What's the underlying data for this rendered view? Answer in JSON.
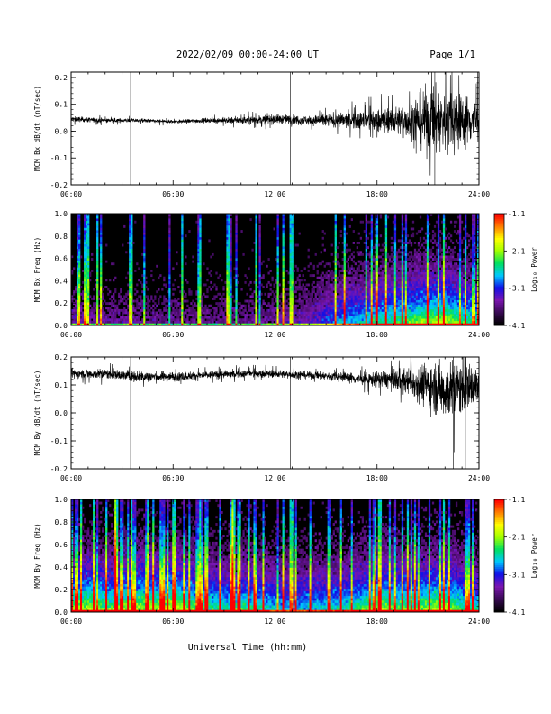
{
  "header": {
    "title": "2022/02/09  00:00-24:00 UT",
    "page": "Page 1/1"
  },
  "footer": {
    "x_title": "Universal Time (hh:mm)"
  },
  "colors": {
    "trace": "#000000",
    "spectrogram_background": "#000000",
    "colormap": [
      "#000000",
      "#3a0a55",
      "#7b16b0",
      "#1010e8",
      "#00c8ff",
      "#00e060",
      "#a0ff00",
      "#ffff00",
      "#ff8000",
      "#ff0000"
    ]
  },
  "chart_data": [
    {
      "type": "line",
      "name": "panel-1",
      "ylabel": "MCM Bx dB/dt (nT/sec)",
      "xlim": [
        0,
        24
      ],
      "ylim": [
        -0.2,
        0.22
      ],
      "yticks": [
        -0.2,
        -0.1,
        0.0,
        0.1,
        0.2
      ],
      "xtick_labels": [
        "00:00",
        "06:00",
        "12:00",
        "18:00",
        "24:00"
      ],
      "approx_envelope": {
        "hours": [
          0,
          2,
          4,
          6,
          8,
          10,
          12,
          14,
          16,
          17,
          18,
          19,
          20,
          20.5,
          21,
          22,
          23,
          24
        ],
        "center": [
          0.045,
          0.04,
          0.04,
          0.035,
          0.04,
          0.04,
          0.045,
          0.04,
          0.04,
          0.04,
          0.04,
          0.04,
          0.04,
          0.04,
          0.04,
          0.04,
          0.04,
          0.04
        ],
        "half_amplitude": [
          0.015,
          0.012,
          0.01,
          0.01,
          0.012,
          0.02,
          0.025,
          0.025,
          0.04,
          0.05,
          0.06,
          0.07,
          0.1,
          0.14,
          0.18,
          0.18,
          0.14,
          0.12
        ]
      },
      "spikes_at_hours": [
        3.5,
        12.9,
        21.4
      ],
      "grid": false
    },
    {
      "type": "heatmap",
      "name": "panel-2",
      "ylabel": "MCM Bx Freq (Hz)",
      "xlim": [
        0,
        24
      ],
      "ylim": [
        0,
        1.0
      ],
      "yticks": [
        0.0,
        0.2,
        0.4,
        0.6,
        0.8,
        1.0
      ],
      "xtick_labels": [
        "00:00",
        "06:00",
        "12:00",
        "18:00",
        "24:00"
      ],
      "colorbar": {
        "label": "Log₁₀ Power",
        "range": [
          -4.1,
          -1.1
        ],
        "ticks": [
          -1.1,
          -2.1,
          -3.1,
          -4.1
        ]
      },
      "activity_by_hour": [
        0.25,
        0.25,
        0.22,
        0.22,
        0.22,
        0.2,
        0.2,
        0.2,
        0.2,
        0.2,
        0.2,
        0.22,
        0.25,
        0.25,
        0.3,
        0.4,
        0.5,
        0.55,
        0.6,
        0.65,
        0.7,
        0.75,
        0.8,
        0.65,
        0.6
      ],
      "bright_lines_at_hours": [
        0.9,
        1.5,
        3.5,
        6.5,
        7.5,
        9.2,
        10.8,
        12.9,
        15.5,
        18.5,
        21.9
      ]
    },
    {
      "type": "line",
      "name": "panel-3",
      "ylabel": "MCM By dB/dt (nT/sec)",
      "xlim": [
        0,
        24
      ],
      "ylim": [
        -0.2,
        0.2
      ],
      "yticks": [
        -0.2,
        -0.1,
        0.0,
        0.1,
        0.2
      ],
      "xtick_labels": [
        "00:00",
        "06:00",
        "12:00",
        "18:00",
        "24:00"
      ],
      "approx_envelope": {
        "hours": [
          0,
          2,
          4,
          6,
          8,
          10,
          12,
          14,
          16,
          17,
          18,
          19,
          20,
          21,
          22,
          23,
          24
        ],
        "center": [
          0.14,
          0.14,
          0.13,
          0.13,
          0.135,
          0.14,
          0.14,
          0.135,
          0.13,
          0.12,
          0.12,
          0.12,
          0.11,
          0.1,
          0.08,
          0.09,
          0.1
        ],
        "half_amplitude": [
          0.025,
          0.025,
          0.03,
          0.025,
          0.02,
          0.02,
          0.02,
          0.02,
          0.025,
          0.03,
          0.04,
          0.05,
          0.07,
          0.12,
          0.15,
          0.14,
          0.1
        ]
      },
      "spikes_at_hours": [
        3.5,
        12.9,
        21.6,
        22.5,
        23.2
      ],
      "grid": false
    },
    {
      "type": "heatmap",
      "name": "panel-4",
      "ylabel": "MCM By Freq (Hz)",
      "xlim": [
        0,
        24
      ],
      "ylim": [
        0,
        1.0
      ],
      "yticks": [
        0.0,
        0.2,
        0.4,
        0.6,
        0.8,
        1.0
      ],
      "xtick_labels": [
        "00:00",
        "06:00",
        "12:00",
        "18:00",
        "24:00"
      ],
      "colorbar": {
        "label": "Log₁₀ Power",
        "range": [
          -4.1,
          -1.1
        ],
        "ticks": [
          -1.1,
          -2.1,
          -3.1,
          -4.1
        ]
      },
      "activity_by_hour": [
        0.75,
        0.8,
        0.7,
        0.75,
        0.8,
        0.75,
        0.85,
        0.7,
        0.65,
        0.6,
        0.65,
        0.6,
        0.55,
        0.5,
        0.55,
        0.55,
        0.6,
        0.65,
        0.8,
        0.7,
        0.7,
        0.75,
        0.8,
        0.65,
        0.6
      ],
      "bright_lines_at_hours": [
        0.5,
        1.3,
        2.6,
        3.5,
        4.5,
        6.0,
        7.5,
        9.5,
        12.9,
        18.1,
        21.9
      ]
    }
  ]
}
